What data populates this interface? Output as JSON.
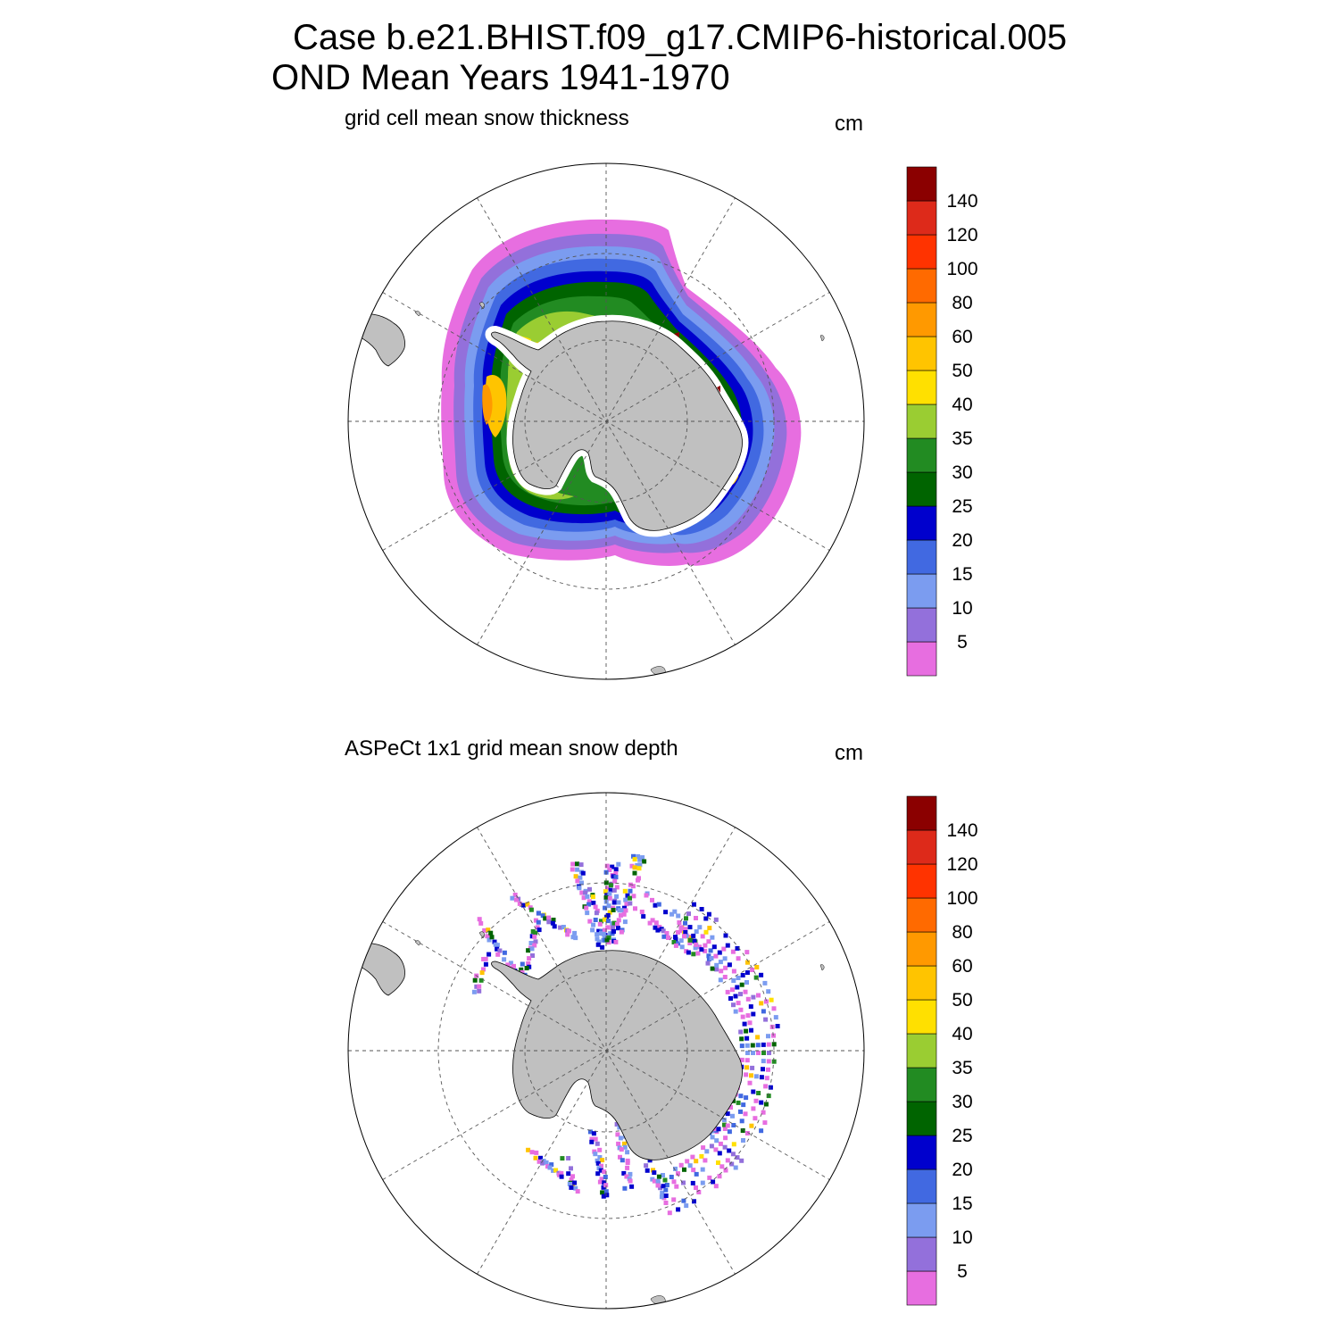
{
  "title": {
    "line1": "Case b.e21.BHIST.f09_g17.CMIP6-historical.005",
    "line2": "OND Mean   Years 1941-1970"
  },
  "colorbar": {
    "tick_labels": [
      "5",
      "10",
      "15",
      "20",
      "25",
      "30",
      "35",
      "40",
      "50",
      "60",
      "80",
      "100",
      "120",
      "140"
    ],
    "colors": [
      "#e76ee0",
      "#9370db",
      "#7b9cf0",
      "#4169e1",
      "#0000cd",
      "#006400",
      "#228b22",
      "#9acd32",
      "#ffe000",
      "#ffc400",
      "#ff9900",
      "#ff6a00",
      "#ff3300",
      "#dd2a1a",
      "#8b0000"
    ]
  },
  "panels": [
    {
      "id": "model",
      "title": "grid cell mean snow thickness",
      "units": "cm"
    },
    {
      "id": "obs",
      "title": "ASPeCt 1x1 grid mean snow depth",
      "units": "cm"
    }
  ],
  "map": {
    "projection": "south-polar-stereographic",
    "land_color": "#c0c0c0",
    "grid_style": "dashed"
  }
}
